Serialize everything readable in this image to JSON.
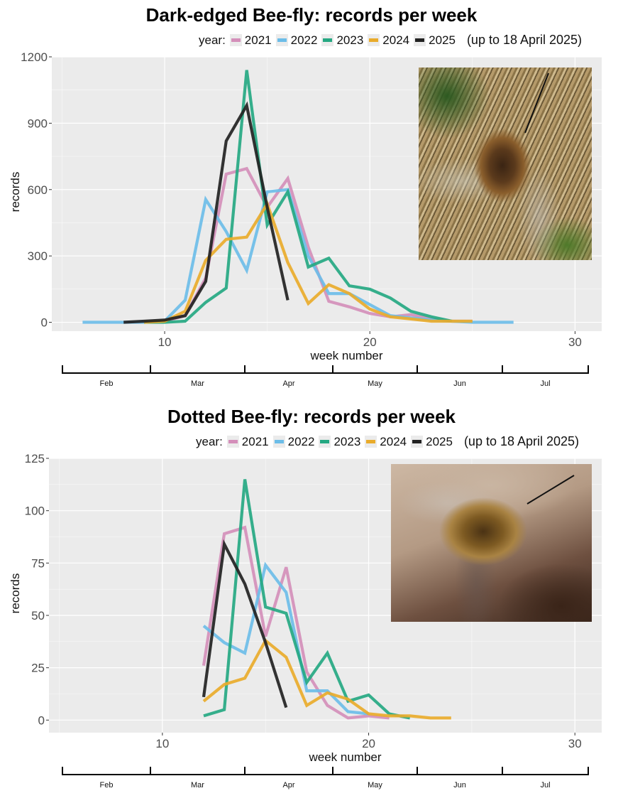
{
  "colors": {
    "2021": "#d48fba",
    "2022": "#6cbde8",
    "2023": "#25a882",
    "2024": "#e9ab2b",
    "2025": "#222222",
    "panel_bg": "#ebebeb",
    "grid": "#ffffff"
  },
  "legend": {
    "prefix": "year:",
    "years": [
      "2021",
      "2022",
      "2023",
      "2024",
      "2025"
    ],
    "note": "(up to 18 April 2025)"
  },
  "month_axis": {
    "labels": [
      "Feb",
      "Mar",
      "Apr",
      "May",
      "Jun",
      "Jul"
    ]
  },
  "chart_data": [
    {
      "type": "line",
      "title": "Dark-edged Bee-fly: records per week",
      "xlabel": "week number",
      "ylabel": "records",
      "xlim": [
        4.5,
        31.3
      ],
      "ylim": [
        -40,
        1200
      ],
      "xticks": [
        10,
        20,
        30
      ],
      "yticks": [
        0,
        300,
        600,
        900,
        1200
      ],
      "grid": true,
      "legend_position": "top",
      "photo": "Dark-edged Bee-fly photo (top-right)",
      "series": [
        {
          "name": "2021",
          "x": [
            9,
            10,
            11,
            12,
            13,
            14,
            15,
            16,
            17,
            18,
            19,
            20,
            21,
            22,
            23,
            24,
            25
          ],
          "values": [
            0,
            5,
            30,
            200,
            670,
            695,
            520,
            650,
            340,
            95,
            70,
            40,
            25,
            35,
            15,
            5,
            5
          ]
        },
        {
          "name": "2022",
          "x": [
            6,
            7,
            8,
            9,
            10,
            11,
            12,
            13,
            14,
            15,
            16,
            17,
            18,
            19,
            20,
            21,
            22,
            23,
            24,
            25,
            26,
            27
          ],
          "values": [
            0,
            0,
            0,
            0,
            5,
            100,
            555,
            410,
            235,
            590,
            600,
            300,
            130,
            130,
            80,
            30,
            20,
            10,
            5,
            0,
            0,
            0
          ]
        },
        {
          "name": "2023",
          "x": [
            9,
            10,
            11,
            12,
            13,
            14,
            15,
            16,
            17,
            18,
            19,
            20,
            21,
            22,
            23,
            24
          ],
          "values": [
            0,
            0,
            5,
            90,
            155,
            1140,
            440,
            590,
            250,
            290,
            165,
            150,
            110,
            50,
            25,
            5
          ]
        },
        {
          "name": "2024",
          "x": [
            9,
            10,
            11,
            12,
            13,
            14,
            15,
            16,
            17,
            18,
            19,
            20,
            21,
            22,
            23,
            24,
            25
          ],
          "values": [
            0,
            5,
            50,
            280,
            375,
            385,
            535,
            270,
            85,
            170,
            130,
            60,
            25,
            15,
            5,
            5,
            5
          ]
        },
        {
          "name": "2025",
          "x": [
            8,
            9,
            10,
            11,
            12,
            13,
            14,
            15,
            16
          ],
          "values": [
            0,
            5,
            10,
            30,
            185,
            820,
            980,
            520,
            100
          ]
        }
      ]
    },
    {
      "type": "line",
      "title": "Dotted Bee-fly: records per week",
      "xlabel": "week number",
      "ylabel": "records",
      "xlim": [
        4.5,
        31.3
      ],
      "ylim": [
        -6,
        125
      ],
      "xticks": [
        10,
        20,
        30
      ],
      "yticks": [
        0,
        25,
        50,
        75,
        100,
        125
      ],
      "grid": true,
      "legend_position": "top",
      "photo": "Dotted Bee-fly photo (top-right)",
      "series": [
        {
          "name": "2021",
          "x": [
            12,
            13,
            14,
            15,
            16,
            17,
            18,
            19,
            20,
            21
          ],
          "values": [
            26,
            89,
            92,
            40,
            73,
            23,
            7,
            1,
            2,
            1
          ]
        },
        {
          "name": "2022",
          "x": [
            12,
            13,
            14,
            15,
            16,
            17,
            18,
            19,
            20
          ],
          "values": [
            45,
            37,
            32,
            74,
            61,
            14,
            14,
            4,
            3
          ]
        },
        {
          "name": "2023",
          "x": [
            12,
            13,
            14,
            15,
            16,
            17,
            18,
            19,
            20,
            21,
            22
          ],
          "values": [
            2,
            5,
            115,
            54,
            51,
            18,
            32,
            9,
            12,
            3,
            1
          ]
        },
        {
          "name": "2024",
          "x": [
            12,
            13,
            14,
            15,
            16,
            17,
            18,
            19,
            20,
            21,
            22,
            23,
            24
          ],
          "values": [
            9,
            17,
            20,
            38,
            30,
            7,
            13,
            10,
            3,
            2,
            2,
            1,
            1
          ]
        },
        {
          "name": "2025",
          "x": [
            12,
            13,
            14,
            15,
            16
          ],
          "values": [
            11,
            84,
            65,
            37,
            6
          ]
        }
      ]
    }
  ]
}
